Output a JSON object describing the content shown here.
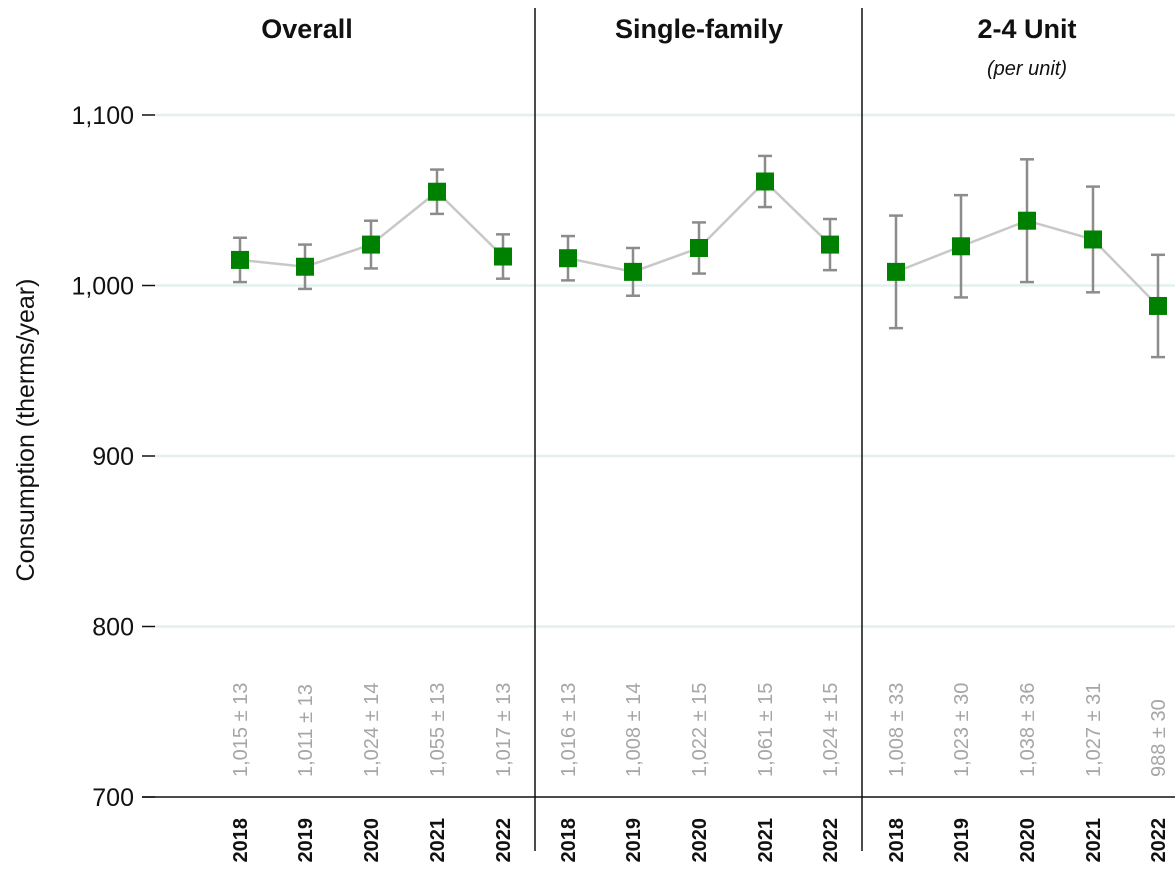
{
  "chart_data": {
    "type": "line",
    "ylabel": "Consumption (therms/year)",
    "ylim": [
      700,
      1150
    ],
    "yticks": [
      {
        "value": 700,
        "label": "700"
      },
      {
        "value": 800,
        "label": "800"
      },
      {
        "value": 900,
        "label": "900"
      },
      {
        "value": 1000,
        "label": "1,000"
      },
      {
        "value": 1100,
        "label": "1,100"
      }
    ],
    "grid": true,
    "colors": {
      "marker": "#008000",
      "line": "#c8c8c8",
      "errorbar": "#8c8c8c",
      "grid": "#e4f0ee",
      "label": "#a6a6a6"
    },
    "panels": [
      {
        "title": "Overall",
        "subtitle": "",
        "points": [
          {
            "x": "2018",
            "y": 1015,
            "err": 13,
            "label": "1,015 ± 13"
          },
          {
            "x": "2019",
            "y": 1011,
            "err": 13,
            "label": "1,011 ± 13"
          },
          {
            "x": "2020",
            "y": 1024,
            "err": 14,
            "label": "1,024 ± 14"
          },
          {
            "x": "2021",
            "y": 1055,
            "err": 13,
            "label": "1,055 ± 13"
          },
          {
            "x": "2022",
            "y": 1017,
            "err": 13,
            "label": "1,017 ± 13"
          }
        ]
      },
      {
        "title": "Single-family",
        "subtitle": "",
        "points": [
          {
            "x": "2018",
            "y": 1016,
            "err": 13,
            "label": "1,016 ± 13"
          },
          {
            "x": "2019",
            "y": 1008,
            "err": 14,
            "label": "1,008 ± 14"
          },
          {
            "x": "2020",
            "y": 1022,
            "err": 15,
            "label": "1,022 ± 15"
          },
          {
            "x": "2021",
            "y": 1061,
            "err": 15,
            "label": "1,061 ± 15"
          },
          {
            "x": "2022",
            "y": 1024,
            "err": 15,
            "label": "1,024 ± 15"
          }
        ]
      },
      {
        "title": "2-4 Unit",
        "subtitle": "(per unit)",
        "points": [
          {
            "x": "2018",
            "y": 1008,
            "err": 33,
            "label": "1,008 ± 33"
          },
          {
            "x": "2019",
            "y": 1023,
            "err": 30,
            "label": "1,023 ± 30"
          },
          {
            "x": "2020",
            "y": 1038,
            "err": 36,
            "label": "1,038 ± 36"
          },
          {
            "x": "2021",
            "y": 1027,
            "err": 31,
            "label": "1,027 ± 31"
          },
          {
            "x": "2022",
            "y": 988,
            "err": 30,
            "label": "988 ± 30"
          }
        ]
      }
    ]
  }
}
